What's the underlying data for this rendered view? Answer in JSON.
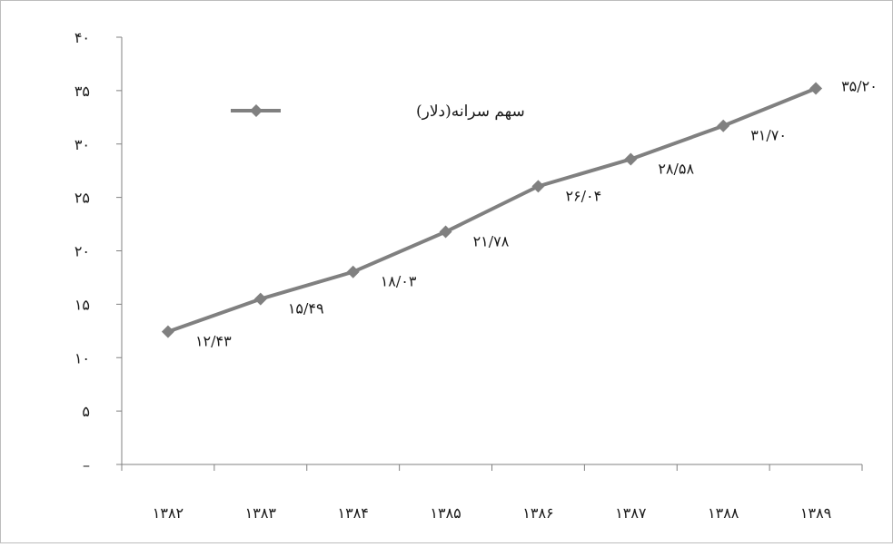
{
  "chart_data": {
    "type": "line",
    "title": "",
    "xlabel": "",
    "ylabel": "",
    "categories": [
      "۱۳۸۲",
      "۱۳۸۳",
      "۱۳۸۴",
      "۱۳۸۵",
      "۱۳۸۶",
      "۱۳۸۷",
      "۱۳۸۸",
      "۱۳۸۹"
    ],
    "series": [
      {
        "name": "سهم سرانه(دلار)",
        "values": [
          12.43,
          15.49,
          18.03,
          21.78,
          26.04,
          28.58,
          31.7,
          35.2
        ],
        "data_labels": [
          "۱۲/۴۳",
          "۱۵/۴۹",
          "۱۸/۰۳",
          "۲۱/۷۸",
          "۲۶/۰۴",
          "۲۸/۵۸",
          "۳۱/۷۰",
          "۳۵/۲۰"
        ],
        "color": "#808080",
        "marker": "diamond"
      }
    ],
    "ylim": [
      0,
      40
    ],
    "yticks": [
      0,
      5,
      10,
      15,
      20,
      25,
      30,
      35,
      40
    ],
    "ytick_labels": [
      "–",
      "۵",
      "۱۰",
      "۱۵",
      "۲۰",
      "۲۵",
      "۳۰",
      "۳۵",
      "۴۰"
    ],
    "grid": false,
    "legend_position": "top-left",
    "axis_color": "#808080"
  }
}
